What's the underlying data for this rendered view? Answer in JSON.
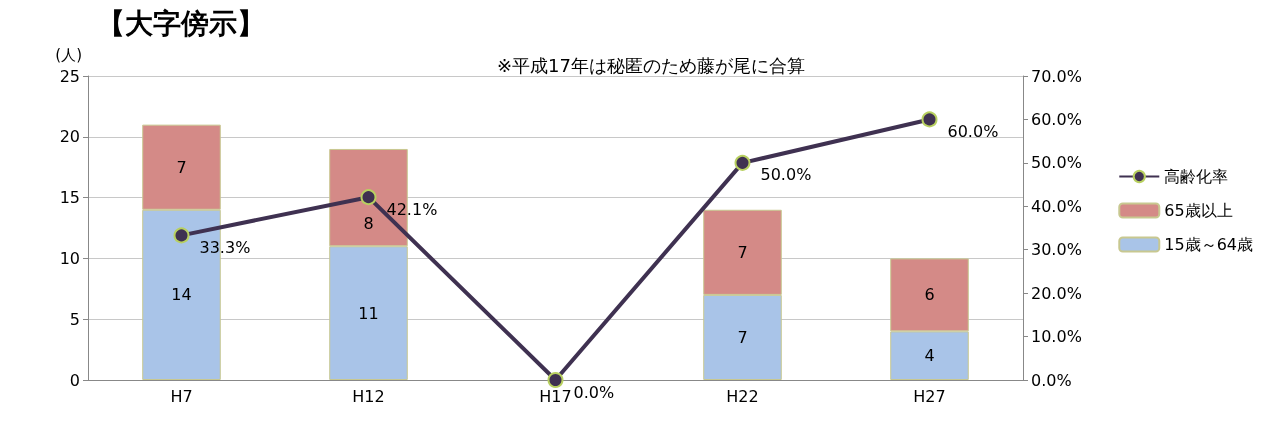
{
  "chart_data": {
    "type": "bar",
    "title": "【大字傍示】",
    "ylabel": "(人)",
    "annotations": [
      "※平成17年は秘匿のため藤が尾に合算"
    ],
    "categories": [
      "H7",
      "H12",
      "H17",
      "H22",
      "H27"
    ],
    "stacked": true,
    "series": [
      {
        "name": "15歳～64歳",
        "color": "#a9c4e8",
        "values": [
          14,
          11,
          0,
          7,
          4
        ],
        "value_labels": [
          "14",
          "11",
          null,
          "7",
          "4"
        ]
      },
      {
        "name": "65歳以上",
        "color": "#d48a87",
        "values": [
          7,
          8,
          0,
          7,
          6
        ],
        "value_labels": [
          "7",
          "8",
          null,
          "7",
          "6"
        ]
      },
      {
        "name": "高齢化率",
        "type": "line",
        "axis": "y2",
        "color": "#3f3151",
        "marker": "circle",
        "values": [
          33.3,
          42.1,
          0,
          50,
          60
        ],
        "value_labels": [
          "33.3%",
          "42.1%",
          "0.0%",
          "50.0%",
          "60.0%"
        ]
      }
    ],
    "ylim": [
      0,
      25
    ],
    "yticks": [
      0,
      5,
      10,
      15,
      20,
      25
    ],
    "y2lim": [
      0,
      70
    ],
    "y2ticks": [
      {
        "value": 0,
        "label": "0.0%"
      },
      {
        "value": 10,
        "label": "10.0%"
      },
      {
        "value": 20,
        "label": "20.0%"
      },
      {
        "value": 30,
        "label": "30.0%"
      },
      {
        "value": 40,
        "label": "40.0%"
      },
      {
        "value": 50,
        "label": "50.0%"
      },
      {
        "value": 60,
        "label": "60.0%"
      },
      {
        "value": 70,
        "label": "70.0%"
      }
    ],
    "grid": "y",
    "legend": "right"
  }
}
